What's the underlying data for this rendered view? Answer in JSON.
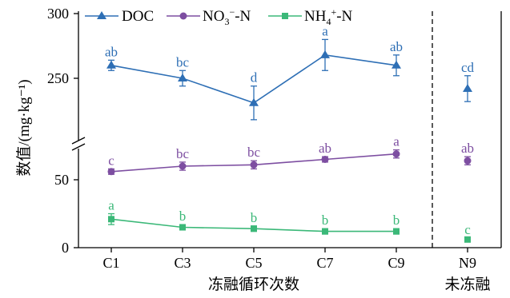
{
  "chart_data": {
    "type": "line",
    "ylabel": "数值/(mg·kg⁻¹)",
    "xlabel_cycles": "冻融循环次数",
    "xlabel_control": "未冻融",
    "categories": [
      "C1",
      "C3",
      "C5",
      "C7",
      "C9",
      "N9"
    ],
    "y_ticks": [
      "0",
      "50",
      "250",
      "300"
    ],
    "y_axis_break": true,
    "upper_segment_range": [
      200,
      300
    ],
    "lower_segment_range": [
      0,
      75
    ],
    "divider_before": "N9",
    "legend_position": "top-left",
    "series": [
      {
        "name": "DOC",
        "name_parts": {
          "base": "DOC",
          "sub": "",
          "sup": "",
          "tail": ""
        },
        "marker": "triangle",
        "color": "#2e6fb5",
        "values": [
          260,
          250,
          231,
          268,
          260,
          242
        ],
        "errors": [
          4,
          6,
          13,
          12,
          8,
          10
        ],
        "letters": [
          "ab",
          "bc",
          "d",
          "a",
          "ab",
          "cd"
        ],
        "connect_until": 4
      },
      {
        "name": "NO3--N",
        "name_parts": {
          "base": "NO",
          "sub": "3",
          "sup": "−",
          "tail": "-N"
        },
        "marker": "circle",
        "color": "#7d4ea1",
        "values": [
          56,
          60,
          61,
          65,
          69,
          64
        ],
        "errors": [
          2,
          3,
          3,
          2,
          3,
          3
        ],
        "letters": [
          "c",
          "bc",
          "bc",
          "ab",
          "a",
          "ab"
        ],
        "connect_until": 4
      },
      {
        "name": "NH4+-N",
        "name_parts": {
          "base": "NH",
          "sub": "4",
          "sup": "+",
          "tail": "-N"
        },
        "marker": "square",
        "color": "#3bb878",
        "values": [
          21,
          15,
          14,
          12,
          12,
          6
        ],
        "errors": [
          4,
          2,
          2,
          2,
          2,
          1
        ],
        "letters": [
          "a",
          "b",
          "b",
          "b",
          "b",
          "c"
        ],
        "connect_until": 4
      }
    ]
  }
}
